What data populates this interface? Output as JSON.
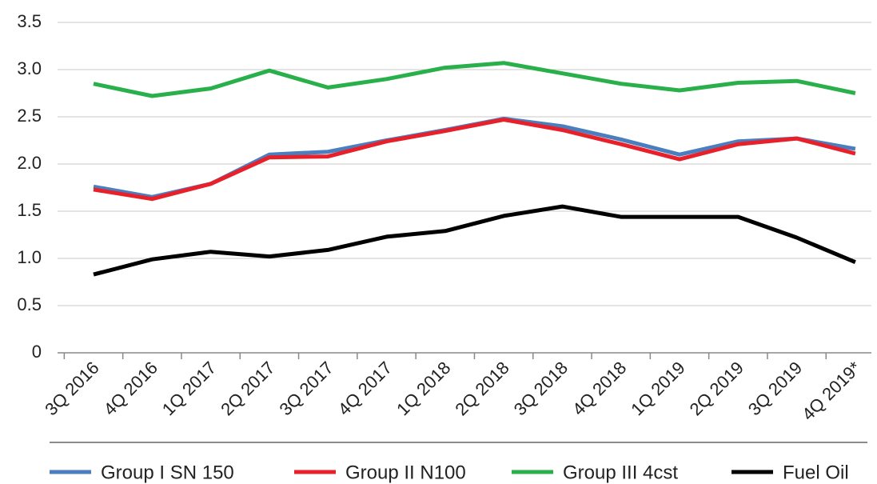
{
  "chart_data": {
    "type": "line",
    "categories": [
      "3Q 2016",
      "4Q 2016",
      "1Q 2017",
      "2Q 2017",
      "3Q 2017",
      "4Q 2017",
      "1Q 2018",
      "2Q 2018",
      "3Q 2018",
      "4Q 2018",
      "1Q 2019",
      "2Q 2019",
      "3Q 2019",
      "4Q 2019*"
    ],
    "series": [
      {
        "name": "Group I SN 150",
        "color": "#4a7ebf",
        "values": [
          1.76,
          1.65,
          1.79,
          2.1,
          2.13,
          2.25,
          2.36,
          2.48,
          2.4,
          2.26,
          2.1,
          2.24,
          2.27,
          2.16
        ]
      },
      {
        "name": "Group II N100",
        "color": "#e8202a",
        "values": [
          1.73,
          1.63,
          1.79,
          2.07,
          2.08,
          2.24,
          2.35,
          2.47,
          2.36,
          2.21,
          2.05,
          2.21,
          2.27,
          2.11
        ]
      },
      {
        "name": "Group III 4cst",
        "color": "#2ab04a",
        "values": [
          2.85,
          2.72,
          2.8,
          2.99,
          2.81,
          2.9,
          3.02,
          3.07,
          2.96,
          2.85,
          2.78,
          2.86,
          2.88,
          2.75
        ]
      },
      {
        "name": "Fuel Oil",
        "color": "#000000",
        "values": [
          0.83,
          0.99,
          1.07,
          1.02,
          1.09,
          1.23,
          1.29,
          1.45,
          1.55,
          1.44,
          1.44,
          1.44,
          1.22,
          0.96
        ]
      }
    ],
    "ylim": [
      0,
      3.5
    ],
    "yticks": [
      0,
      0.5,
      {
        "value": 1,
        "label": "1.0"
      },
      1.5,
      {
        "value": 2,
        "label": "2.0"
      },
      2.5,
      {
        "value": 3,
        "label": "3.0"
      },
      3.5
    ],
    "grid": true,
    "legend": "bottom"
  }
}
